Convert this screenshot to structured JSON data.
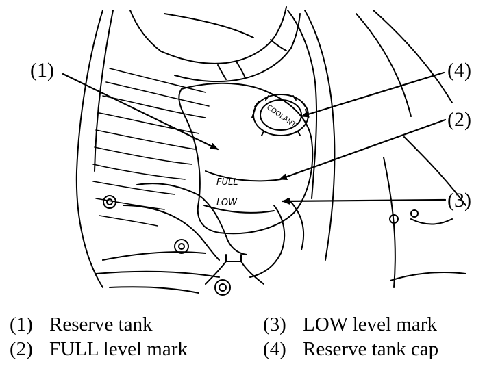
{
  "callouts": [
    {
      "id": "1",
      "text": "(1)"
    },
    {
      "id": "2",
      "text": "(2)"
    },
    {
      "id": "3",
      "text": "(3)"
    },
    {
      "id": "4",
      "text": "(4)"
    }
  ],
  "tank_labels": {
    "full": "FULL",
    "low": "LOW",
    "cap_text": "COOLANT"
  },
  "legend": [
    {
      "num": "(1)",
      "label": "Reserve tank"
    },
    {
      "num": "(2)",
      "label": "FULL level mark"
    },
    {
      "num": "(3)",
      "label": "LOW level mark"
    },
    {
      "num": "(4)",
      "label": "Reserve tank cap"
    }
  ]
}
